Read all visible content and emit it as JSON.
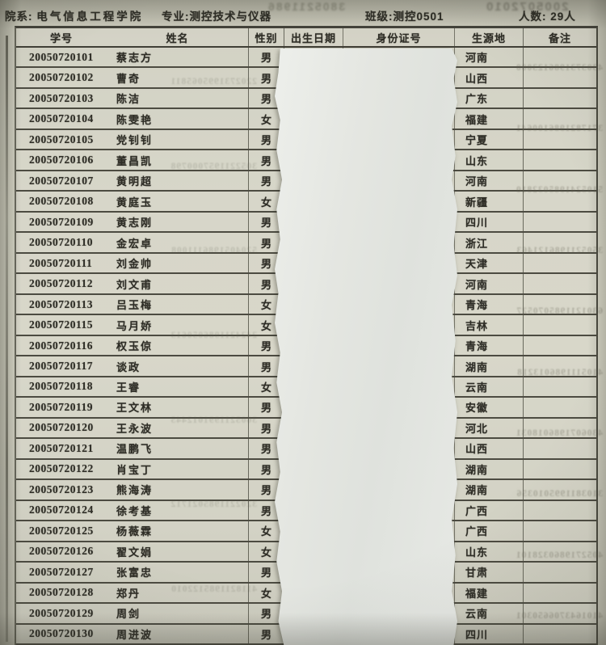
{
  "header": {
    "department_label": "院系:",
    "department_value": "电气信息工程学院",
    "major_label": "专业:",
    "major_value": "测控技术与仪器",
    "class_label": "班级:",
    "class_value": "测控0501",
    "count_label": "人数:",
    "count_value": "29人"
  },
  "table": {
    "columns": [
      "学号",
      "姓名",
      "性别",
      "出生日期",
      "身份证号",
      "生源地",
      "备注"
    ],
    "rows": [
      {
        "id": "20050720101",
        "name": "蔡志方",
        "gender": "男",
        "birth": "",
        "idnum": "",
        "origin": "河南",
        "note": ""
      },
      {
        "id": "20050720102",
        "name": "曹奇",
        "gender": "男",
        "birth": "",
        "idnum": "",
        "origin": "山西",
        "note": ""
      },
      {
        "id": "20050720103",
        "name": "陈洁",
        "gender": "男",
        "birth": "",
        "idnum": "",
        "origin": "广东",
        "note": ""
      },
      {
        "id": "20050720104",
        "name": "陈雯艳",
        "gender": "女",
        "birth": "",
        "idnum": "",
        "origin": "福建",
        "note": ""
      },
      {
        "id": "20050720105",
        "name": "党钊钊",
        "gender": "男",
        "birth": "",
        "idnum": "",
        "origin": "宁夏",
        "note": ""
      },
      {
        "id": "20050720106",
        "name": "董昌凯",
        "gender": "男",
        "birth": "",
        "idnum": "",
        "origin": "山东",
        "note": ""
      },
      {
        "id": "20050720107",
        "name": "黄明超",
        "gender": "男",
        "birth": "",
        "idnum": "",
        "origin": "河南",
        "note": ""
      },
      {
        "id": "20050720108",
        "name": "黄庭玉",
        "gender": "女",
        "birth": "",
        "idnum": "",
        "origin": "新疆",
        "note": ""
      },
      {
        "id": "20050720109",
        "name": "黄志刚",
        "gender": "男",
        "birth": "",
        "idnum": "",
        "origin": "四川",
        "note": ""
      },
      {
        "id": "20050720110",
        "name": "金宏卓",
        "gender": "男",
        "birth": "",
        "idnum": "",
        "origin": "浙江",
        "note": ""
      },
      {
        "id": "20050720111",
        "name": "刘金帅",
        "gender": "男",
        "birth": "",
        "idnum": "",
        "origin": "天津",
        "note": ""
      },
      {
        "id": "20050720112",
        "name": "刘文甫",
        "gender": "男",
        "birth": "",
        "idnum": "",
        "origin": "河南",
        "note": ""
      },
      {
        "id": "20050720113",
        "name": "吕玉梅",
        "gender": "女",
        "birth": "",
        "idnum": "",
        "origin": "青海",
        "note": ""
      },
      {
        "id": "20050720115",
        "name": "马月娇",
        "gender": "女",
        "birth": "",
        "idnum": "",
        "origin": "吉林",
        "note": ""
      },
      {
        "id": "20050720116",
        "name": "权玉倞",
        "gender": "男",
        "birth": "",
        "idnum": "",
        "origin": "青海",
        "note": ""
      },
      {
        "id": "20050720117",
        "name": "谈政",
        "gender": "男",
        "birth": "",
        "idnum": "",
        "origin": "湖南",
        "note": ""
      },
      {
        "id": "20050720118",
        "name": "王睿",
        "gender": "女",
        "birth": "",
        "idnum": "",
        "origin": "云南",
        "note": ""
      },
      {
        "id": "20050720119",
        "name": "王文林",
        "gender": "男",
        "birth": "",
        "idnum": "",
        "origin": "安徽",
        "note": ""
      },
      {
        "id": "20050720120",
        "name": "王永波",
        "gender": "男",
        "birth": "",
        "idnum": "",
        "origin": "河北",
        "note": ""
      },
      {
        "id": "20050720121",
        "name": "温鹏飞",
        "gender": "男",
        "birth": "",
        "idnum": "",
        "origin": "山西",
        "note": ""
      },
      {
        "id": "20050720122",
        "name": "肖宝丁",
        "gender": "男",
        "birth": "",
        "idnum": "",
        "origin": "湖南",
        "note": ""
      },
      {
        "id": "20050720123",
        "name": "熊海涛",
        "gender": "男",
        "birth": "",
        "idnum": "",
        "origin": "湖南",
        "note": ""
      },
      {
        "id": "20050720124",
        "name": "徐考基",
        "gender": "男",
        "birth": "",
        "idnum": "",
        "origin": "广西",
        "note": ""
      },
      {
        "id": "20050720125",
        "name": "杨薇霖",
        "gender": "女",
        "birth": "",
        "idnum": "",
        "origin": "广西",
        "note": ""
      },
      {
        "id": "20050720126",
        "name": "翟文娟",
        "gender": "女",
        "birth": "",
        "idnum": "",
        "origin": "山东",
        "note": ""
      },
      {
        "id": "20050720127",
        "name": "张富忠",
        "gender": "男",
        "birth": "",
        "idnum": "",
        "origin": "甘肃",
        "note": ""
      },
      {
        "id": "20050720128",
        "name": "郑丹",
        "gender": "女",
        "birth": "",
        "idnum": "",
        "origin": "福建",
        "note": ""
      },
      {
        "id": "20050720129",
        "name": "周剑",
        "gender": "男",
        "birth": "",
        "idnum": "",
        "origin": "云南",
        "note": ""
      },
      {
        "id": "20050720130",
        "name": "周进波",
        "gender": "男",
        "birth": "",
        "idnum": "",
        "origin": "四川",
        "note": ""
      }
    ]
  },
  "scan_artifacts": {
    "ghosts_right": [
      "4303731986123000",
      "3717821986100641",
      "5105241985032810",
      "3505211986121463",
      "6301211985070527",
      "4105111986013218",
      "4306071986018031",
      "3103811995010356",
      "4052719860328101",
      "4101643706650301"
    ],
    "ghosts_mid": [
      "2202731995065811",
      "3052211957000798",
      "5204051986111008",
      "2424211986050613",
      "3605211991012445",
      "3202211985021712",
      "4118211985122010"
    ],
    "ghosts_top": [
      "3805211986",
      "2005072010"
    ]
  }
}
